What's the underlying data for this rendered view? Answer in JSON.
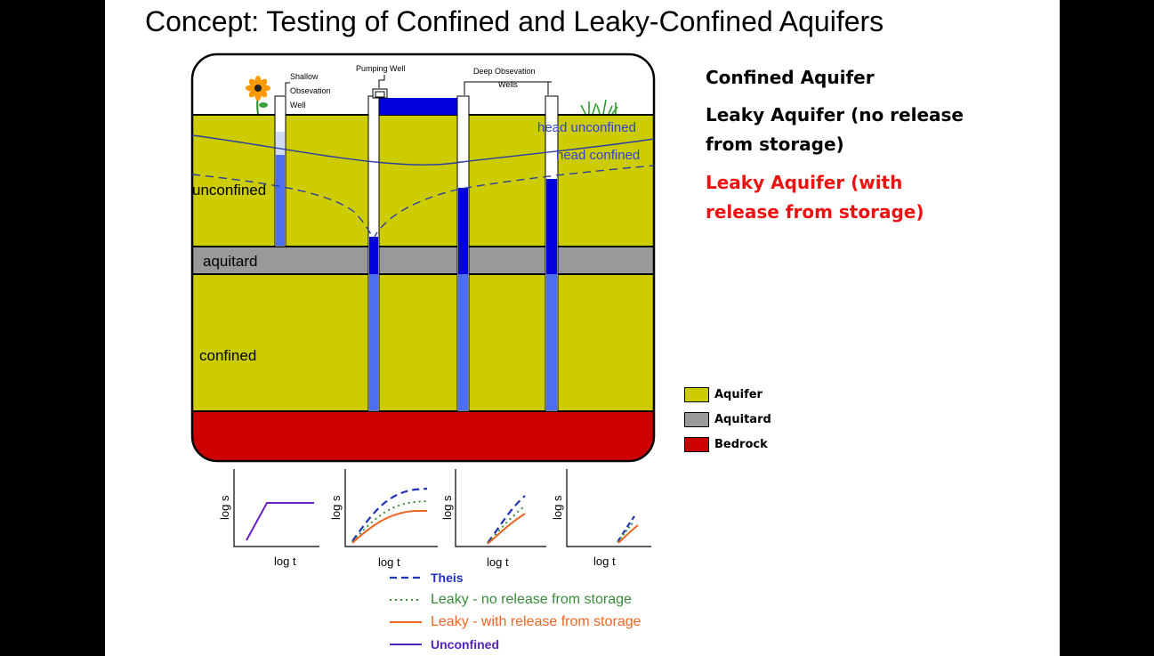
{
  "slide": {
    "title": "Concept: Testing of Confined and Leaky-Confined Aquifers"
  },
  "diagram": {
    "labels": {
      "shallow_well": [
        "Shallow",
        "Obsevation",
        "Well"
      ],
      "pumping_well": "Pumping Well",
      "deep_wells": [
        "Deep Obsevation",
        "Wells"
      ],
      "head_unconfined": "head unconfined",
      "head_confined": "head confined",
      "unconfined": "unconfined",
      "aquitard": "aquitard",
      "confined": "confined"
    },
    "colors": {
      "aquifer": "#cccc00",
      "aquitard": "#999999",
      "bedrock": "#cc0000",
      "water": "#0000dd",
      "water_light": "#4c6ef0",
      "head_line": "#2c3ea0"
    }
  },
  "concepts": [
    {
      "text": "Confined Aquifer",
      "color": "#111111"
    },
    {
      "text": "Leaky Aquifer (no release",
      "color": "#111111"
    },
    {
      "text": "from storage)",
      "color": "#111111"
    },
    {
      "text": "Leaky Aquifer (with",
      "color": "#ee1111"
    },
    {
      "text": "release from storage)",
      "color": "#ee1111"
    }
  ],
  "layer_legend": [
    {
      "label": "Aquifer",
      "color": "#cccc00"
    },
    {
      "label": "Aquitard",
      "color": "#999999"
    },
    {
      "label": "Bedrock",
      "color": "#cc0000"
    }
  ],
  "plots": {
    "ylabel": "log s",
    "xlabel": "log t"
  },
  "curve_legend": [
    {
      "label": "Theis",
      "color": "#2233bb",
      "style": "dashed"
    },
    {
      "label": "Leaky - no release from storage",
      "color": "#3a8a3a",
      "style": "dotted"
    },
    {
      "label": "Leaky - with release from storage",
      "color": "#ee6622",
      "style": "solid"
    },
    {
      "label": "Unconfined",
      "color": "#5522bb",
      "style": "solid"
    }
  ]
}
